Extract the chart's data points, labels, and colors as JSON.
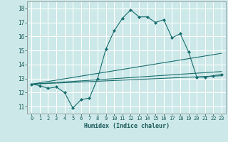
{
  "xlabel": "Humidex (Indice chaleur)",
  "bg_color": "#cce8e8",
  "grid_color": "#ffffff",
  "line_color": "#1a6e6e",
  "xlim": [
    -0.5,
    23.5
  ],
  "ylim": [
    10.5,
    18.5
  ],
  "yticks": [
    11,
    12,
    13,
    14,
    15,
    16,
    17,
    18
  ],
  "xtick_labels": [
    "0",
    "1",
    "2",
    "3",
    "4",
    "5",
    "6",
    "7",
    "8",
    "9",
    "10",
    "11",
    "12",
    "13",
    "14",
    "15",
    "16",
    "17",
    "18",
    "19",
    "20",
    "21",
    "22",
    "23"
  ],
  "series": [
    {
      "x": [
        0,
        1,
        2,
        3,
        4,
        5,
        6,
        7,
        8,
        9,
        10,
        11,
        12,
        13,
        14,
        15,
        16,
        17,
        18,
        19,
        20,
        21,
        22,
        23
      ],
      "y": [
        12.6,
        12.5,
        12.3,
        12.4,
        12.0,
        10.9,
        11.5,
        11.6,
        13.0,
        15.1,
        16.4,
        17.3,
        17.9,
        17.4,
        17.4,
        17.0,
        17.2,
        15.9,
        16.2,
        14.9,
        13.1,
        13.1,
        13.2,
        13.3
      ],
      "marker": "D",
      "markersize": 2.0,
      "linewidth": 0.8
    },
    {
      "x": [
        0,
        23
      ],
      "y": [
        12.6,
        14.8
      ],
      "marker": null,
      "linewidth": 0.8
    },
    {
      "x": [
        0,
        23
      ],
      "y": [
        12.6,
        13.5
      ],
      "marker": null,
      "linewidth": 0.8
    },
    {
      "x": [
        0,
        23
      ],
      "y": [
        12.6,
        13.2
      ],
      "marker": null,
      "linewidth": 0.8
    }
  ]
}
